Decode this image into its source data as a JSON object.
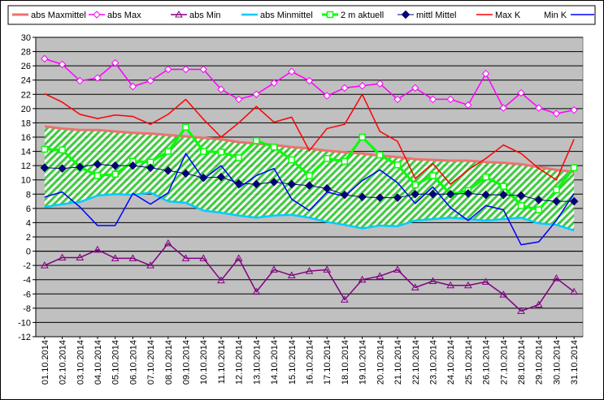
{
  "chart_data": {
    "type": "line",
    "title": "",
    "xlabel": "",
    "ylabel": "",
    "ylim": [
      -12,
      30
    ],
    "ystep": 2,
    "grid": "horizontal",
    "legend_position": "top",
    "plot_background": "#c0c0c0",
    "band_fill": "hatched green between abs Minmittel and abs Maxmittel",
    "categories": [
      "01.10.2014",
      "02.10.2014",
      "03.10.2014",
      "04.10.2014",
      "05.10.2014",
      "06.10.2014",
      "07.10.2014",
      "08.10.2014",
      "09.10.2014",
      "10.10.2014",
      "11.10.2014",
      "12.10.2014",
      "13.10.2014",
      "14.10.2014",
      "15.10.2014",
      "16.10.2014",
      "17.10.2014",
      "18.10.2014",
      "19.10.2014",
      "20.10.2014",
      "21.10.2014",
      "22.10.2014",
      "23.10.2014",
      "24.10.2014",
      "25.10.2014",
      "26.10.2014",
      "27.10.2014",
      "28.10.2014",
      "29.10.2014",
      "30.10.2014",
      "31.10.2014"
    ],
    "series": [
      {
        "name": "abs Maxmittel",
        "color": "#ff8080",
        "marker": "none",
        "width": 3,
        "values": [
          17.5,
          17.2,
          17.0,
          17.0,
          16.8,
          16.6,
          16.5,
          16.3,
          16.1,
          15.9,
          15.7,
          15.3,
          15.1,
          14.9,
          14.6,
          14.4,
          14.1,
          13.9,
          13.7,
          13.4,
          13.2,
          12.9,
          12.8,
          12.7,
          12.7,
          12.5,
          12.4,
          12.2,
          11.8,
          11.4,
          11.1
        ]
      },
      {
        "name": "abs Max",
        "color": "#ff00ff",
        "marker": "diamond-open",
        "width": 1.5,
        "values": [
          27.0,
          26.2,
          23.9,
          24.3,
          26.4,
          23.1,
          23.9,
          25.5,
          25.5,
          25.5,
          22.7,
          21.3,
          22.0,
          23.6,
          25.2,
          23.9,
          21.8,
          22.9,
          23.2,
          23.5,
          21.3,
          22.9,
          21.3,
          21.3,
          20.5,
          24.9,
          20.1,
          22.2,
          20.1,
          19.3,
          19.8
        ]
      },
      {
        "name": "abs Min",
        "color": "#800080",
        "marker": "triangle-open",
        "width": 1.5,
        "values": [
          -2.0,
          -0.9,
          -0.9,
          0.2,
          -1.0,
          -1.0,
          -2.0,
          1.1,
          -1.0,
          -1.0,
          -4.1,
          -1.0,
          -5.7,
          -2.6,
          -3.4,
          -2.8,
          -2.6,
          -6.8,
          -4.0,
          -3.5,
          -2.6,
          -5.1,
          -4.2,
          -4.8,
          -4.8,
          -4.3,
          -6.1,
          -8.4,
          -7.5,
          -3.8,
          -5.7
        ]
      },
      {
        "name": "abs Minmittel",
        "color": "#00ccff",
        "marker": "none",
        "width": 2.5,
        "values": [
          6.2,
          6.6,
          6.9,
          7.8,
          8.0,
          7.9,
          8.2,
          7.0,
          6.8,
          5.7,
          5.4,
          5.0,
          4.7,
          5.0,
          5.1,
          4.7,
          4.1,
          3.7,
          3.2,
          3.6,
          3.5,
          4.3,
          4.5,
          4.7,
          4.5,
          4.3,
          4.5,
          4.7,
          3.9,
          3.7,
          2.9
        ]
      },
      {
        "name": "2 m aktuell",
        "color": "#00ff00",
        "marker": "square-open",
        "width": 3,
        "values": [
          14.3,
          14.2,
          11.8,
          10.6,
          10.8,
          12.6,
          12.5,
          14.0,
          17.4,
          14.0,
          13.9,
          13.1,
          15.5,
          14.6,
          12.8,
          10.6,
          13.0,
          12.6,
          16.0,
          13.5,
          12.1,
          9.3,
          10.6,
          8.0,
          8.5,
          10.4,
          9.1,
          6.4,
          5.8,
          8.6,
          11.7
        ]
      },
      {
        "name": "mittl Mittel",
        "color": "#000080",
        "marker": "diamond-filled",
        "width": 1,
        "values": [
          11.7,
          11.6,
          11.8,
          12.2,
          12.0,
          12.0,
          11.7,
          11.3,
          10.9,
          10.3,
          10.4,
          9.5,
          9.4,
          9.7,
          9.4,
          9.2,
          8.8,
          7.9,
          7.6,
          7.5,
          7.5,
          8.0,
          8.0,
          8.0,
          8.1,
          7.9,
          7.9,
          7.8,
          7.2,
          7.0,
          7.0
        ]
      },
      {
        "name": "Max K",
        "color": "#ff0000",
        "marker": "none",
        "width": 1.5,
        "values": [
          22.1,
          20.9,
          19.2,
          18.6,
          19.1,
          18.9,
          17.8,
          19.2,
          21.3,
          18.5,
          16.0,
          18.0,
          20.3,
          18.1,
          18.8,
          14.1,
          17.2,
          17.8,
          22.0,
          16.8,
          15.4,
          10.2,
          12.3,
          9.4,
          11.4,
          13.0,
          14.9,
          13.7,
          11.6,
          10.0,
          15.7
        ]
      },
      {
        "name": "Min K",
        "color": "#0000ff",
        "marker": "none",
        "width": 1.5,
        "values": [
          7.6,
          8.3,
          6.2,
          3.6,
          3.6,
          8.1,
          6.6,
          8.2,
          13.7,
          10.1,
          12.0,
          8.9,
          10.6,
          11.6,
          7.3,
          5.7,
          8.3,
          7.7,
          9.9,
          11.4,
          9.6,
          6.7,
          9.0,
          6.1,
          4.3,
          6.4,
          5.8,
          0.9,
          1.3,
          4.3,
          8.1
        ]
      }
    ]
  }
}
